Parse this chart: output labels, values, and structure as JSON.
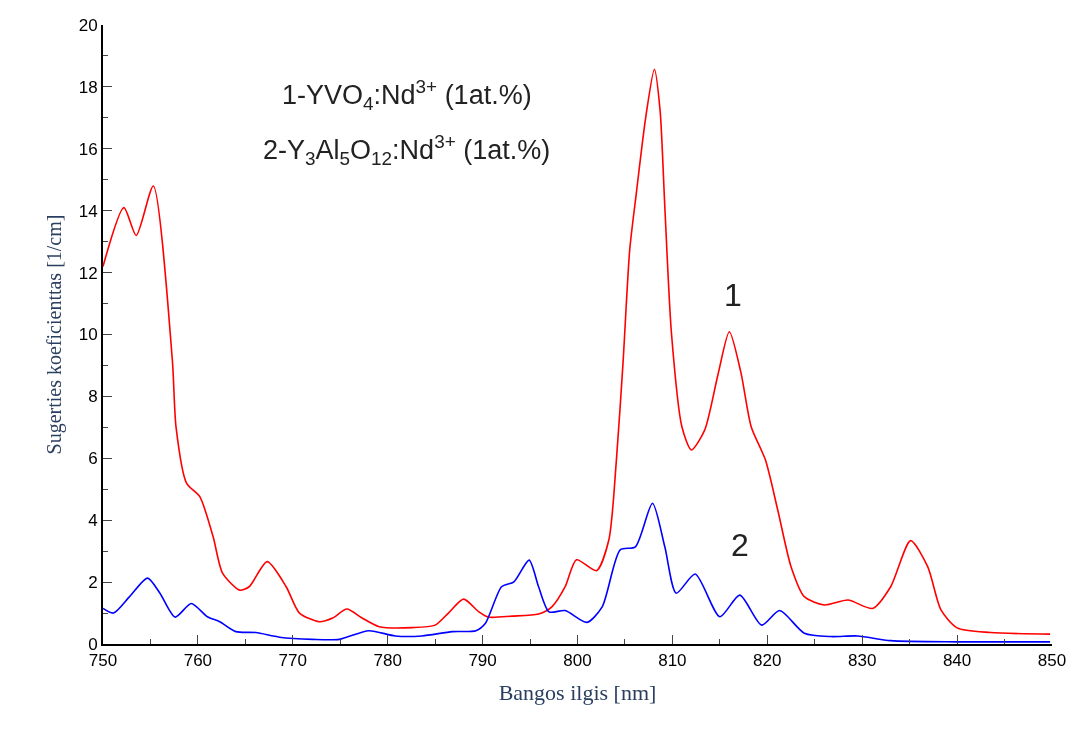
{
  "chart_data": {
    "type": "line",
    "xlabel": "Bangos ilgis [nm]",
    "ylabel": "Sugerties koeficienttas [1/cm]",
    "xlim": [
      750,
      850
    ],
    "xticks": [
      750,
      760,
      770,
      780,
      790,
      800,
      810,
      820,
      830,
      840,
      850
    ],
    "ylim": [
      0,
      20
    ],
    "yticks": [
      0,
      2,
      4,
      6,
      8,
      10,
      12,
      14,
      16,
      18,
      20
    ],
    "marker": "none",
    "line_style": "solid",
    "series": [
      {
        "color": "#ff0000",
        "x": [
          750,
          752.2,
          753.5,
          755.3,
          757.3,
          757.7,
          758.8,
          760.2,
          761.6,
          762.6,
          764.4,
          765.4,
          767.3,
          769.3,
          770.7,
          772.8,
          774.2,
          775.7,
          777.3,
          779.1,
          782.6,
          785.0,
          786.4,
          788.0,
          789.6,
          790.6,
          793.1,
          795.9,
          797.3,
          798.7,
          799.9,
          802.0,
          803.3,
          804.1,
          804.8,
          805.5,
          806.2,
          807.2,
          808.1,
          808.7,
          809.2,
          809.9,
          811.0,
          812.0,
          813.4,
          814.8,
          816.0,
          817.2,
          818.3,
          819.8,
          821.1,
          822.5,
          823.9,
          826.0,
          828.5,
          831.1,
          833.0,
          835.1,
          836.9,
          838.3,
          840.0,
          843.5,
          849.8
        ],
        "values": [
          12.2,
          14.1,
          13.2,
          14.8,
          9.2,
          7.0,
          5.2,
          4.76,
          3.47,
          2.29,
          1.74,
          1.85,
          2.66,
          1.85,
          1.0,
          0.72,
          0.84,
          1.13,
          0.84,
          0.56,
          0.53,
          0.61,
          1.0,
          1.45,
          1.04,
          0.87,
          0.9,
          0.97,
          1.2,
          1.85,
          2.72,
          2.37,
          3.36,
          5.95,
          9.1,
          12.73,
          14.57,
          17.04,
          18.57,
          17.25,
          14.13,
          10.04,
          7.02,
          6.27,
          6.91,
          8.7,
          10.09,
          8.8,
          7.02,
          5.95,
          4.33,
          2.5,
          1.53,
          1.26,
          1.42,
          1.15,
          1.85,
          3.34,
          2.5,
          1.1,
          0.52,
          0.37,
          0.32
        ]
      },
      {
        "color": "#0000ff",
        "x": [
          750.0,
          751.1,
          752.8,
          754.7,
          756.0,
          757.6,
          759.3,
          761.0,
          762.3,
          764.0,
          766.1,
          768.6,
          772.1,
          774.9,
          778.0,
          780.8,
          783.6,
          786.8,
          789.3,
          790.3,
          792.0,
          793.3,
          794.9,
          795.9,
          797.0,
          798.7,
          801.0,
          802.6,
          804.5,
          806.1,
          807.9,
          809.2,
          810.4,
          812.4,
          815.0,
          817.1,
          819.4,
          821.3,
          823.9,
          826.7,
          829.5,
          833.0,
          840.0,
          849.8
        ],
        "values": [
          1.15,
          1.0,
          1.53,
          2.13,
          1.64,
          0.87,
          1.31,
          0.88,
          0.72,
          0.4,
          0.37,
          0.22,
          0.15,
          0.15,
          0.43,
          0.26,
          0.26,
          0.4,
          0.43,
          0.67,
          1.85,
          2.01,
          2.71,
          1.85,
          1.04,
          1.08,
          0.7,
          1.2,
          3.04,
          3.14,
          4.55,
          3.14,
          1.64,
          2.26,
          0.88,
          1.58,
          0.61,
          1.08,
          0.35,
          0.24,
          0.26,
          0.11,
          0.07,
          0.07
        ]
      }
    ],
    "annotations": [
      "1-YVO$_{4}$:Nd$^{3+}$ (1at.%)",
      "2-Y$_{3}$Al$_{5}$O$_{12}$:Nd$^{3+}$ (1at.%)",
      "1",
      "2"
    ]
  }
}
